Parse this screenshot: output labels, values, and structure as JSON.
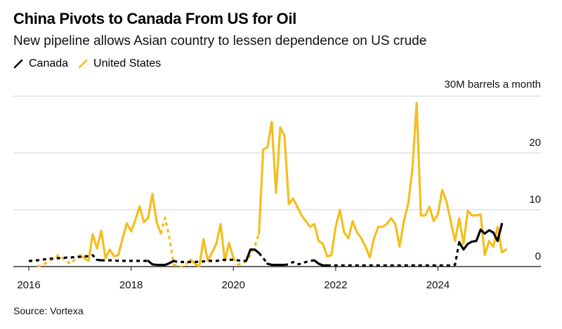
{
  "header": {
    "title": "China Pivots to Canada From US for Oil",
    "subtitle": "New pipeline allows Asian country to lessen dependence on US crude"
  },
  "legend": [
    {
      "label": "Canada",
      "color": "#000000",
      "icon": "line-swatch-icon"
    },
    {
      "label": "United States",
      "color": "#F5BE1E",
      "icon": "line-swatch-icon"
    }
  ],
  "unit_label": "30M barrels a month",
  "source": "Source: Vortexa",
  "chart_data": {
    "type": "line",
    "title": "China Pivots to Canada From US for Oil",
    "subtitle": "New pipeline allows Asian country to lessen dependence on US crude",
    "xlabel": "",
    "ylabel": "Million barrels a month",
    "ylim": [
      0,
      30
    ],
    "yticks": [
      0,
      10,
      20,
      30
    ],
    "ytick_labels": [
      "0",
      "10",
      "20",
      "30M barrels a month"
    ],
    "xticks": [
      2016,
      2018,
      2020,
      2022,
      2024
    ],
    "xtick_labels": [
      "2016",
      "2018",
      "2020",
      "2022",
      "2024"
    ],
    "xlim": [
      2016,
      2025.5
    ],
    "grid": true,
    "legend_position": "top-left",
    "x_start": "2016-01",
    "x_step": "month",
    "series": [
      {
        "name": "Canada",
        "color": "#000000",
        "values": [
          1.0,
          1.0,
          1.1,
          1.2,
          1.3,
          1.4,
          1.4,
          1.5,
          1.5,
          1.6,
          1.6,
          1.7,
          1.7,
          1.8,
          1.8,
          2.0,
          1.2,
          1.1,
          1.1,
          1.1,
          1.1,
          1.0,
          1.0,
          1.0,
          1.0,
          1.0,
          1.0,
          1.0,
          1.0,
          0.4,
          0.3,
          0.3,
          0.3,
          0.6,
          1.0,
          0.8,
          0.8,
          0.8,
          0.8,
          0.8,
          0.9,
          0.9,
          1.0,
          1.0,
          1.0,
          1.1,
          1.2,
          1.2,
          1.2,
          1.1,
          1.0,
          1.0,
          3.0,
          3.0,
          2.4,
          1.5,
          0.5,
          0.3,
          0.3,
          0.3,
          0.3,
          0.4,
          0.8,
          0.4,
          0.5,
          0.8,
          1.0,
          1.1,
          0.5,
          0.2,
          0.2,
          0.2,
          0.2,
          0.2,
          0.2,
          0.2,
          0.2,
          0.2,
          0.2,
          0.2,
          0.2,
          0.2,
          0.2,
          0.2,
          0.2,
          0.2,
          0.2,
          0.2,
          0.2,
          0.2,
          0.2,
          0.2,
          0.2,
          0.2,
          0.2,
          0.2,
          0.2,
          0.2,
          0.2,
          0.2,
          0.3,
          4.3,
          3.0,
          4.0,
          4.4,
          4.5,
          6.5,
          5.8,
          6.4,
          6.0,
          4.5,
          7.5
        ],
        "dashed_ranges": [
          [
            0,
            16
          ],
          [
            17,
            28
          ],
          [
            34,
            51
          ],
          [
            54,
            56
          ],
          [
            60,
            67
          ],
          [
            70,
            101
          ]
        ]
      },
      {
        "name": "United States",
        "color": "#F5BE1E",
        "values": [
          null,
          null,
          0.0,
          0.2,
          0.6,
          1.0,
          1.6,
          2.0,
          1.5,
          0.8,
          0.5,
          1.5,
          2.0,
          1.5,
          1.0,
          5.7,
          3.2,
          6.3,
          1.5,
          3.0,
          1.8,
          2.0,
          5.0,
          7.6,
          6.2,
          8.2,
          10.6,
          7.8,
          8.6,
          12.8,
          7.8,
          5.8,
          8.6,
          5.0,
          0.4,
          0.0,
          0.0,
          0.5,
          1.2,
          0.5,
          0.0,
          4.8,
          1.0,
          2.5,
          4.0,
          7.5,
          1.0,
          4.2,
          1.5,
          0.4,
          0.4,
          1.0,
          2.0,
          3.5,
          5.8,
          20.6,
          21.0,
          25.5,
          13.0,
          24.5,
          23.0,
          11.0,
          12.0,
          10.5,
          9.0,
          8.0,
          7.0,
          7.5,
          4.5,
          4.0,
          1.8,
          2.0,
          7.0,
          10.0,
          6.0,
          5.0,
          8.0,
          6.0,
          5.0,
          3.5,
          1.6,
          5.0,
          7.0,
          7.0,
          7.5,
          8.5,
          7.5,
          3.5,
          8.0,
          11.0,
          17.0,
          28.8,
          9.0,
          9.0,
          10.5,
          8.0,
          9.2,
          13.5,
          11.5,
          8.0,
          4.5,
          8.5,
          4.0,
          9.8,
          9.0,
          9.0,
          9.2,
          2.0,
          4.5,
          3.5,
          7.0,
          2.5,
          3.0
        ],
        "dashed_ranges": [
          [
            0,
            12
          ],
          [
            31,
            37
          ],
          [
            48,
            54
          ]
        ]
      }
    ]
  }
}
